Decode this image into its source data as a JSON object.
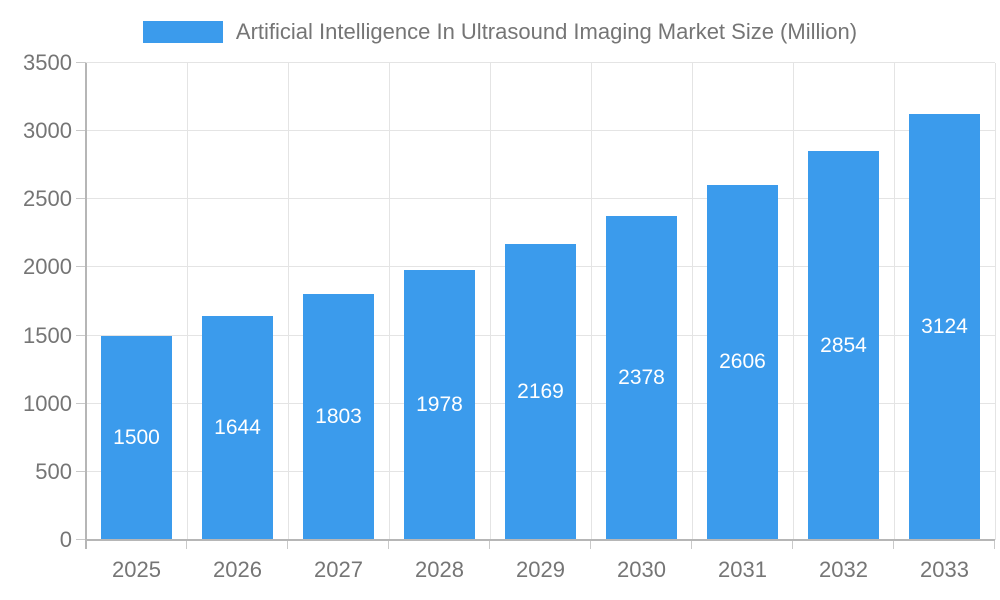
{
  "chart_data": {
    "type": "bar",
    "title": "Artificial Intelligence In Ultrasound Imaging Market Size (Million)",
    "legend_position": "top",
    "categories": [
      "2025",
      "2026",
      "2027",
      "2028",
      "2029",
      "2030",
      "2031",
      "2032",
      "2033"
    ],
    "values": [
      1500,
      1644,
      1803,
      1978,
      2169,
      2378,
      2606,
      2854,
      3124
    ],
    "xlabel": "",
    "ylabel": "",
    "ylim": [
      0,
      3500
    ],
    "yticks": [
      0,
      500,
      1000,
      1500,
      2000,
      2500,
      3000,
      3500
    ],
    "grid": true,
    "colors": {
      "bar": "#3b9bec",
      "bar_value_text": "#ffffff",
      "axis_text": "#757575",
      "gridline": "#e4e4e4",
      "axis_line": "#b6b6b6",
      "tick": "#c9c9c9",
      "background": "#ffffff"
    }
  }
}
